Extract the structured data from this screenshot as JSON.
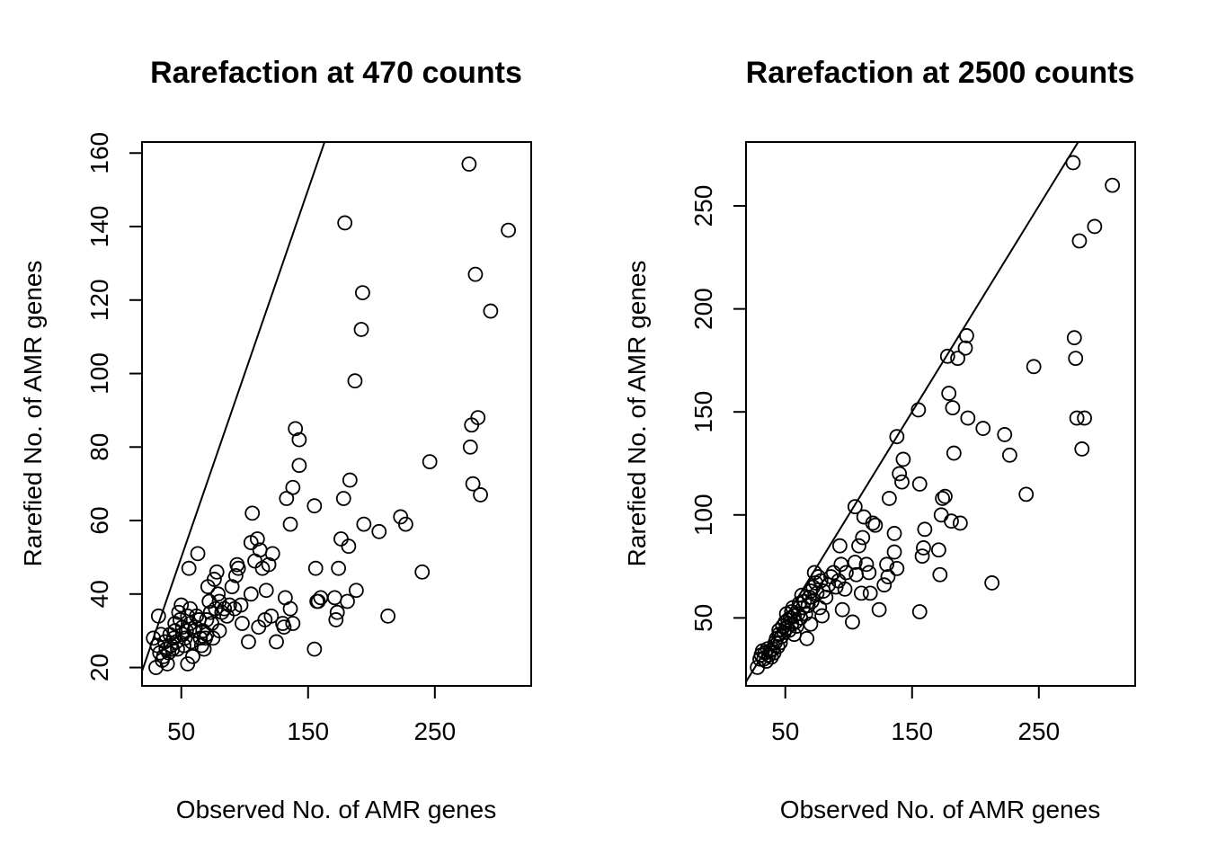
{
  "chart_data": [
    {
      "type": "scatter",
      "title": "Rarefaction at 470 counts",
      "xlabel": "Observed No. of AMR genes",
      "ylabel": "Rarefied No. of AMR genes",
      "xlim": [
        19,
        326
      ],
      "ylim": [
        15,
        163
      ],
      "xticks": [
        50,
        150,
        250
      ],
      "yticks": [
        20,
        40,
        60,
        80,
        100,
        120,
        140,
        160
      ],
      "grid": false,
      "legend": "none",
      "reference_line": {
        "slope": 1,
        "intercept": 0
      },
      "points": [
        [
          28,
          28
        ],
        [
          30,
          20
        ],
        [
          31,
          26
        ],
        [
          32,
          34
        ],
        [
          33,
          24
        ],
        [
          34,
          29
        ],
        [
          35,
          22
        ],
        [
          36,
          23
        ],
        [
          37,
          27
        ],
        [
          38,
          25
        ],
        [
          39,
          21
        ],
        [
          40,
          24
        ],
        [
          41,
          29
        ],
        [
          42,
          26
        ],
        [
          43,
          25
        ],
        [
          44,
          28
        ],
        [
          45,
          32
        ],
        [
          45,
          30
        ],
        [
          46,
          27
        ],
        [
          47,
          25
        ],
        [
          48,
          35
        ],
        [
          49,
          33
        ],
        [
          50,
          37
        ],
        [
          51,
          31
        ],
        [
          51,
          29
        ],
        [
          52,
          26
        ],
        [
          53,
          28
        ],
        [
          54,
          30
        ],
        [
          55,
          34
        ],
        [
          55,
          21
        ],
        [
          56,
          47
        ],
        [
          57,
          36
        ],
        [
          57,
          32
        ],
        [
          58,
          27
        ],
        [
          59,
          23
        ],
        [
          60,
          30
        ],
        [
          61,
          31
        ],
        [
          62,
          34
        ],
        [
          63,
          51
        ],
        [
          64,
          33
        ],
        [
          65,
          28
        ],
        [
          66,
          26
        ],
        [
          67,
          30
        ],
        [
          68,
          25
        ],
        [
          69,
          28
        ],
        [
          70,
          33
        ],
        [
          70,
          29
        ],
        [
          71,
          42
        ],
        [
          72,
          38
        ],
        [
          73,
          35
        ],
        [
          74,
          32
        ],
        [
          75,
          28
        ],
        [
          76,
          44
        ],
        [
          77,
          36
        ],
        [
          78,
          46
        ],
        [
          79,
          40
        ],
        [
          80,
          30
        ],
        [
          80,
          38
        ],
        [
          82,
          35
        ],
        [
          84,
          36
        ],
        [
          86,
          34
        ],
        [
          88,
          37
        ],
        [
          90,
          42
        ],
        [
          92,
          36
        ],
        [
          93,
          45
        ],
        [
          94,
          48
        ],
        [
          95,
          47
        ],
        [
          97,
          37
        ],
        [
          98,
          32
        ],
        [
          103,
          27
        ],
        [
          105,
          54
        ],
        [
          105,
          40
        ],
        [
          106,
          62
        ],
        [
          108,
          49
        ],
        [
          110,
          55
        ],
        [
          111,
          31
        ],
        [
          112,
          52
        ],
        [
          114,
          47
        ],
        [
          116,
          33
        ],
        [
          117,
          41
        ],
        [
          119,
          48
        ],
        [
          121,
          34
        ],
        [
          122,
          51
        ],
        [
          125,
          27
        ],
        [
          130,
          32
        ],
        [
          131,
          31
        ],
        [
          132,
          39
        ],
        [
          133,
          66
        ],
        [
          136,
          36
        ],
        [
          136,
          59
        ],
        [
          138,
          32
        ],
        [
          138,
          69
        ],
        [
          140,
          85
        ],
        [
          143,
          82
        ],
        [
          143,
          75
        ],
        [
          155,
          25
        ],
        [
          155,
          64
        ],
        [
          156,
          47
        ],
        [
          157,
          38
        ],
        [
          158,
          38
        ],
        [
          160,
          39
        ],
        [
          171,
          39
        ],
        [
          172,
          33
        ],
        [
          173,
          35
        ],
        [
          174,
          47
        ],
        [
          176,
          55
        ],
        [
          178,
          66
        ],
        [
          179,
          141
        ],
        [
          181,
          38
        ],
        [
          182,
          53
        ],
        [
          183,
          71
        ],
        [
          187,
          98
        ],
        [
          188,
          41
        ],
        [
          192,
          112
        ],
        [
          193,
          122
        ],
        [
          194,
          59
        ],
        [
          206,
          57
        ],
        [
          213,
          34
        ],
        [
          223,
          61
        ],
        [
          227,
          59
        ],
        [
          240,
          46
        ],
        [
          246,
          76
        ],
        [
          277,
          157
        ],
        [
          278,
          80
        ],
        [
          279,
          86
        ],
        [
          280,
          70
        ],
        [
          282,
          127
        ],
        [
          284,
          88
        ],
        [
          286,
          67
        ],
        [
          294,
          117
        ],
        [
          308,
          139
        ]
      ]
    },
    {
      "type": "scatter",
      "title": "Rarefaction at 2500 counts",
      "xlabel": "Observed No. of AMR genes",
      "ylabel": "Rarefied No. of AMR genes",
      "xlim": [
        19,
        326
      ],
      "ylim": [
        17,
        281
      ],
      "xticks": [
        50,
        150,
        250
      ],
      "yticks": [
        50,
        100,
        150,
        200,
        250
      ],
      "grid": false,
      "legend": "none",
      "reference_line": {
        "slope": 1,
        "intercept": 0
      },
      "points": [
        [
          28,
          26
        ],
        [
          30,
          30
        ],
        [
          31,
          32
        ],
        [
          32,
          34
        ],
        [
          33,
          30
        ],
        [
          34,
          33
        ],
        [
          35,
          29
        ],
        [
          36,
          35
        ],
        [
          37,
          32
        ],
        [
          38,
          34
        ],
        [
          39,
          31
        ],
        [
          40,
          35
        ],
        [
          41,
          33
        ],
        [
          42,
          38
        ],
        [
          43,
          40
        ],
        [
          44,
          36
        ],
        [
          45,
          42
        ],
        [
          45,
          44
        ],
        [
          46,
          38
        ],
        [
          47,
          41
        ],
        [
          48,
          46
        ],
        [
          49,
          43
        ],
        [
          50,
          48
        ],
        [
          51,
          45
        ],
        [
          51,
          52
        ],
        [
          52,
          49
        ],
        [
          53,
          44
        ],
        [
          54,
          50
        ],
        [
          55,
          47
        ],
        [
          55,
          53
        ],
        [
          56,
          55
        ],
        [
          57,
          51
        ],
        [
          57,
          42
        ],
        [
          58,
          48
        ],
        [
          59,
          46
        ],
        [
          60,
          52
        ],
        [
          61,
          57
        ],
        [
          62,
          50
        ],
        [
          63,
          61
        ],
        [
          64,
          55
        ],
        [
          65,
          58
        ],
        [
          66,
          52
        ],
        [
          67,
          40
        ],
        [
          68,
          56
        ],
        [
          69,
          60
        ],
        [
          70,
          63
        ],
        [
          70,
          47
        ],
        [
          71,
          58
        ],
        [
          72,
          65
        ],
        [
          73,
          72
        ],
        [
          74,
          67
        ],
        [
          75,
          62
        ],
        [
          76,
          70
        ],
        [
          77,
          55
        ],
        [
          78,
          68
        ],
        [
          79,
          51
        ],
        [
          80,
          63
        ],
        [
          82,
          60
        ],
        [
          84,
          66
        ],
        [
          86,
          70
        ],
        [
          88,
          72
        ],
        [
          90,
          65
        ],
        [
          92,
          68
        ],
        [
          93,
          85
        ],
        [
          94,
          76
        ],
        [
          95,
          54
        ],
        [
          97,
          64
        ],
        [
          98,
          72
        ],
        [
          103,
          48
        ],
        [
          105,
          104
        ],
        [
          105,
          77
        ],
        [
          106,
          71
        ],
        [
          108,
          85
        ],
        [
          110,
          62
        ],
        [
          111,
          89
        ],
        [
          112,
          99
        ],
        [
          114,
          76
        ],
        [
          116,
          72
        ],
        [
          117,
          62
        ],
        [
          119,
          96
        ],
        [
          121,
          95
        ],
        [
          124,
          54
        ],
        [
          128,
          66
        ],
        [
          130,
          76
        ],
        [
          131,
          70
        ],
        [
          132,
          108
        ],
        [
          136,
          82
        ],
        [
          136,
          91
        ],
        [
          138,
          138
        ],
        [
          138,
          74
        ],
        [
          140,
          120
        ],
        [
          142,
          116
        ],
        [
          143,
          127
        ],
        [
          155,
          151
        ],
        [
          156,
          115
        ],
        [
          156,
          53
        ],
        [
          158,
          80
        ],
        [
          159,
          84
        ],
        [
          160,
          93
        ],
        [
          171,
          83
        ],
        [
          172,
          71
        ],
        [
          173,
          100
        ],
        [
          174,
          108
        ],
        [
          176,
          109
        ],
        [
          178,
          177
        ],
        [
          179,
          159
        ],
        [
          181,
          97
        ],
        [
          182,
          152
        ],
        [
          183,
          130
        ],
        [
          186,
          176
        ],
        [
          188,
          96
        ],
        [
          192,
          181
        ],
        [
          193,
          187
        ],
        [
          194,
          147
        ],
        [
          206,
          142
        ],
        [
          213,
          67
        ],
        [
          223,
          139
        ],
        [
          227,
          129
        ],
        [
          240,
          110
        ],
        [
          246,
          172
        ],
        [
          277,
          271
        ],
        [
          278,
          186
        ],
        [
          279,
          176
        ],
        [
          280,
          147
        ],
        [
          282,
          233
        ],
        [
          284,
          132
        ],
        [
          286,
          147
        ],
        [
          294,
          240
        ],
        [
          308,
          260
        ]
      ]
    }
  ]
}
